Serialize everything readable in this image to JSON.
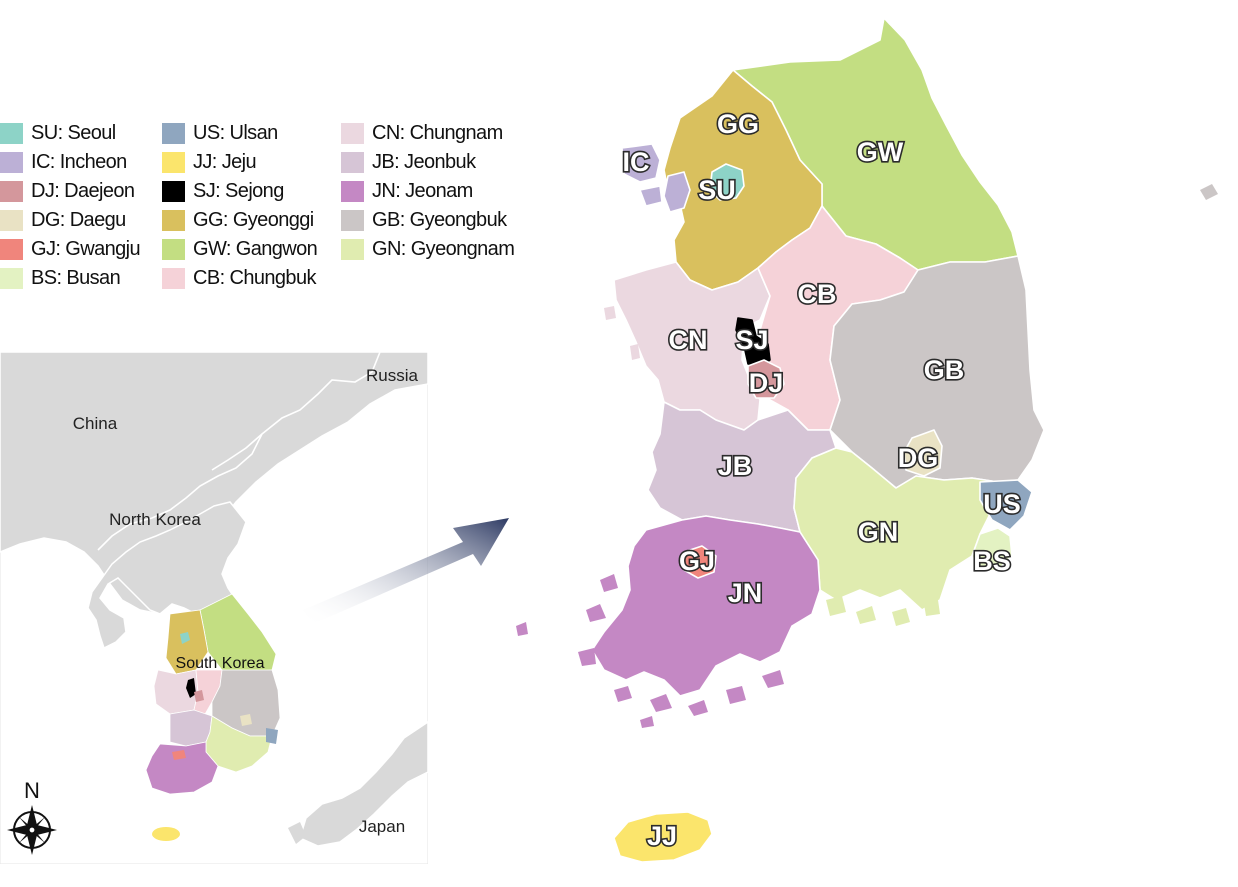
{
  "legend": {
    "items": [
      {
        "code": "SU",
        "name": "Seoul",
        "text": "SU: Seoul",
        "color": "#8dd3c7"
      },
      {
        "code": "IC",
        "name": "Incheon",
        "text": "IC: Incheon",
        "color": "#bcb0d6"
      },
      {
        "code": "DJ",
        "name": "Daejeon",
        "text": "DJ: Daejeon",
        "color": "#d4979c"
      },
      {
        "code": "DG",
        "name": "Daegu",
        "text": "DG: Daegu",
        "color": "#e9e2c4"
      },
      {
        "code": "GJ",
        "name": "Gwangju",
        "text": "GJ: Gwangju",
        "color": "#f0857c"
      },
      {
        "code": "BS",
        "name": "Busan",
        "text": "BS: Busan",
        "color": "#e3f2c2"
      },
      {
        "code": "US",
        "name": "Ulsan",
        "text": "US: Ulsan",
        "color": "#8fa6bf"
      },
      {
        "code": "JJ",
        "name": "Jeju",
        "text": "JJ: Jeju",
        "color": "#fbe56c"
      },
      {
        "code": "SJ",
        "name": "Sejong",
        "text": "SJ: Sejong",
        "color": "#000000"
      },
      {
        "code": "GG",
        "name": "Gyeonggi",
        "text": "GG: Gyeonggi",
        "color": "#d9c05e"
      },
      {
        "code": "GW",
        "name": "Gangwon",
        "text": "GW: Gangwon",
        "color": "#c3de82"
      },
      {
        "code": "CB",
        "name": "Chungbuk",
        "text": "CB: Chungbuk",
        "color": "#f5d2d8"
      },
      {
        "code": "CN",
        "name": "Chungnam",
        "text": "CN: Chungnam",
        "color": "#ebd8e0"
      },
      {
        "code": "JB",
        "name": "Jeonbuk",
        "text": "JB: Jeonbuk",
        "color": "#d6c5d6"
      },
      {
        "code": "JN",
        "name": "Jeonam",
        "text": "JN: Jeonam",
        "color": "#c488c4"
      },
      {
        "code": "GB",
        "name": "Gyeongbuk",
        "text": "GB: Gyeongbuk",
        "color": "#cbc6c6"
      },
      {
        "code": "GN",
        "name": "Gyeongnam",
        "text": "GN: Gyeongnam",
        "color": "#e0ecb0"
      }
    ]
  },
  "inset": {
    "countries": [
      "Russia",
      "China",
      "North Korea",
      "Japan"
    ],
    "focus_country": "South Korea",
    "land_color": "#d9d9d9",
    "border_color": "#ffffff"
  },
  "main_map": {
    "region_labels": [
      "GG",
      "IC",
      "SU",
      "GW",
      "CB",
      "CN",
      "SJ",
      "DJ",
      "GB",
      "JB",
      "DG",
      "US",
      "GN",
      "BS",
      "GJ",
      "JN",
      "JJ"
    ]
  },
  "compass": {
    "north_label": "N"
  },
  "arrow": {
    "color": "#2d3a63"
  }
}
